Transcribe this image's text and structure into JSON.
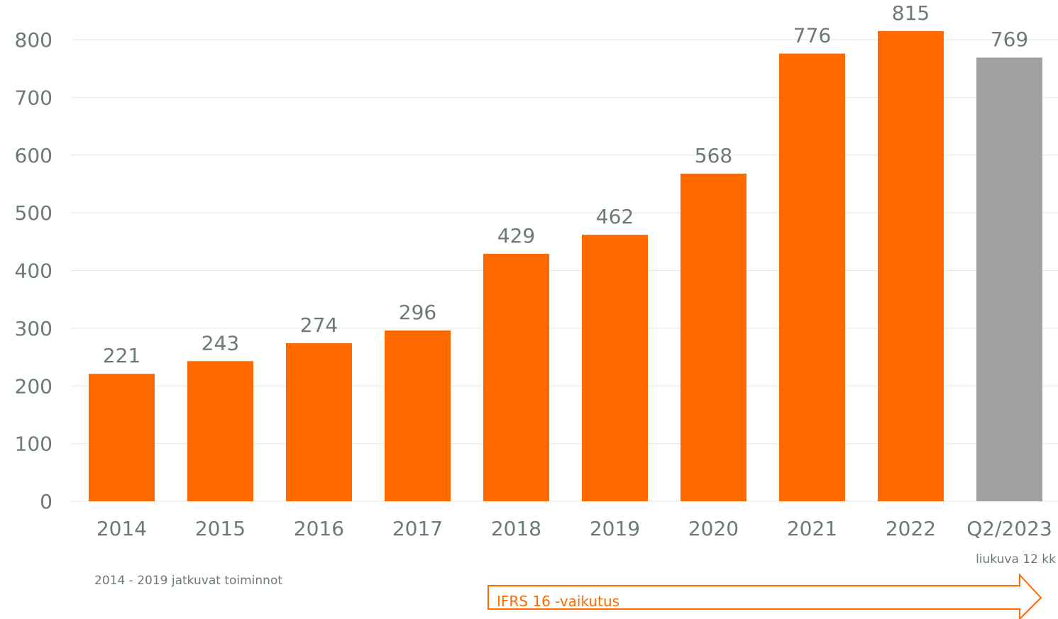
{
  "chart_data": {
    "type": "bar",
    "categories": [
      "2014",
      "2015",
      "2016",
      "2017",
      "2018",
      "2019",
      "2020",
      "2021",
      "2022",
      "Q2/2023"
    ],
    "values": [
      221,
      243,
      274,
      296,
      429,
      462,
      568,
      776,
      815,
      769
    ],
    "value_labels": [
      "221",
      "243",
      "274",
      "296",
      "429",
      "462",
      "568",
      "776",
      "815",
      "769"
    ],
    "yticks": [
      0,
      100,
      200,
      300,
      400,
      500,
      600,
      700,
      800
    ],
    "ylim": [
      0,
      800
    ],
    "grid": true,
    "bar_colors": [
      "#ff6a00",
      "#ff6a00",
      "#ff6a00",
      "#ff6a00",
      "#ff6a00",
      "#ff6a00",
      "#ff6a00",
      "#ff6a00",
      "#ff6a00",
      "#a0a2a2"
    ],
    "title": "",
    "xlabel": "",
    "ylabel": ""
  },
  "notes": {
    "last_category_sub": "liukuva 12 kk",
    "footnote": "2014 - 2019 jatkuvat toiminnot",
    "ifrs_label": "IFRS 16 -vaikutus"
  },
  "colors": {
    "accent": "#ff6a00",
    "rolling": "#a0a2a2",
    "text": "#6b7a78",
    "grid": "#e6e6e6"
  }
}
